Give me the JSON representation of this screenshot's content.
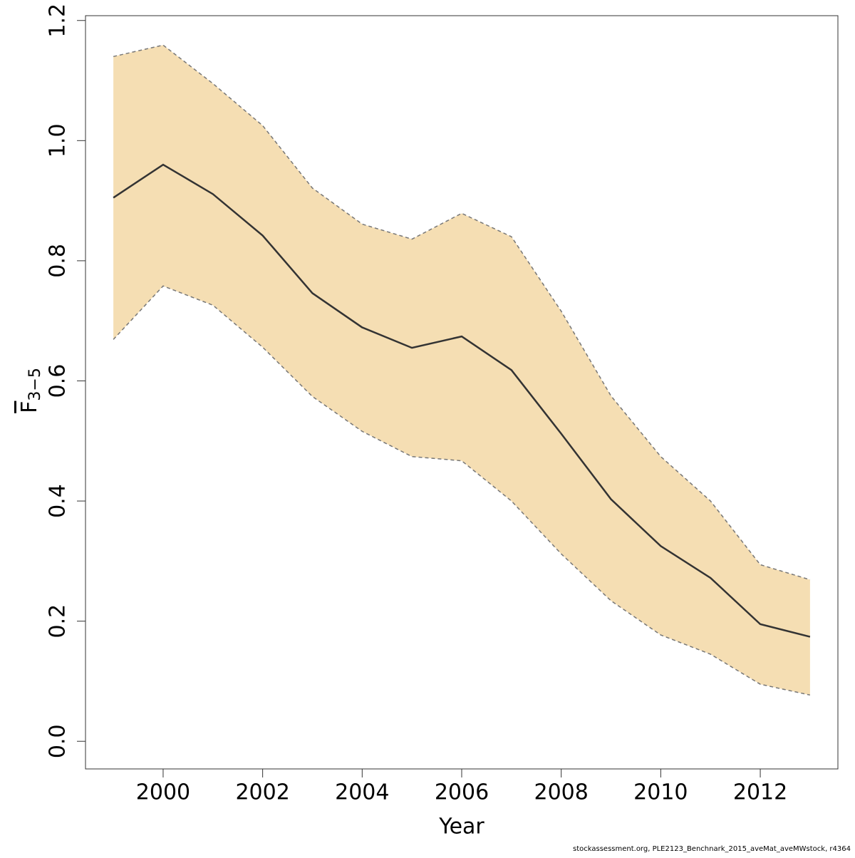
{
  "chart_data": {
    "type": "band-line",
    "xlabel": "Year",
    "ylabel": "F",
    "ylabel_sub": "3−5",
    "footer": "stockassessment.org, PLE2123_Benchnark_2015_aveMat_aveMWstock, r4364",
    "x": [
      1999,
      2000,
      2001,
      2002,
      2003,
      2004,
      2005,
      2006,
      2007,
      2008,
      2009,
      2010,
      2011,
      2012,
      2013
    ],
    "values": [
      0.905,
      0.96,
      0.911,
      0.842,
      0.746,
      0.689,
      0.655,
      0.674,
      0.618,
      0.512,
      0.403,
      0.325,
      0.272,
      0.195,
      0.174
    ],
    "upper": [
      1.14,
      1.159,
      1.095,
      1.025,
      0.921,
      0.861,
      0.836,
      0.879,
      0.84,
      0.716,
      0.575,
      0.474,
      0.4,
      0.294,
      0.269
    ],
    "lower": [
      0.669,
      0.758,
      0.726,
      0.656,
      0.574,
      0.516,
      0.474,
      0.467,
      0.4,
      0.312,
      0.234,
      0.177,
      0.145,
      0.095,
      0.077
    ],
    "color": "#333333",
    "band_color": "#f5deb3",
    "bound_color": "#777777",
    "xlim": [
      1998.44,
      2013.56
    ],
    "ylim": [
      -0.046,
      1.208
    ],
    "xticks": [
      2000,
      2002,
      2004,
      2006,
      2008,
      2010,
      2012
    ],
    "yticks": [
      {
        "value": 0,
        "label": "0.0"
      },
      0.2,
      0.4,
      0.6,
      0.8,
      {
        "value": 1,
        "label": "1.0"
      },
      1.2
    ]
  }
}
